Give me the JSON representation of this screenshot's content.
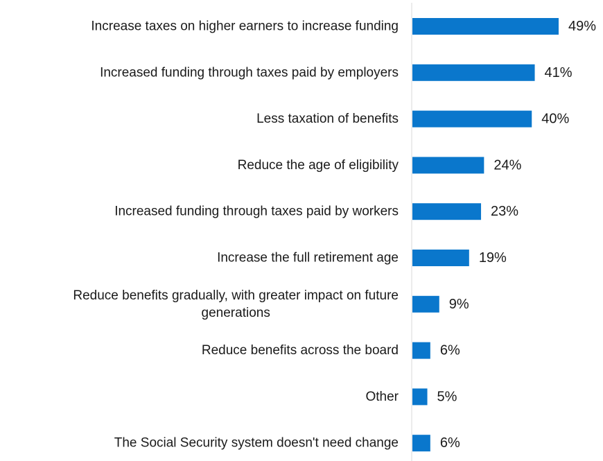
{
  "chart_data": {
    "type": "bar",
    "orientation": "horizontal",
    "categories": [
      "Increase taxes on higher earners to increase funding",
      "Increased funding through taxes paid by employers",
      "Less taxation of benefits",
      "Reduce the age of eligibility",
      "Increased funding through taxes paid by workers",
      "Increase the full retirement age",
      "Reduce benefits gradually, with greater impact on future generations",
      "Reduce benefits across the board",
      "Other",
      "The Social Security system doesn't need change"
    ],
    "category_lines": [
      [
        "Increase taxes on higher earners to increase funding"
      ],
      [
        "Increased funding through taxes paid by employers"
      ],
      [
        "Less taxation of benefits"
      ],
      [
        "Reduce the age of eligibility"
      ],
      [
        "Increased funding through taxes paid by workers"
      ],
      [
        "Increase the full retirement age"
      ],
      [
        "Reduce benefits gradually, with greater impact on future",
        "generations"
      ],
      [
        "Reduce benefits across the board"
      ],
      [
        "Other"
      ],
      [
        "The Social Security system doesn't need change"
      ]
    ],
    "values": [
      49,
      41,
      40,
      24,
      23,
      19,
      9,
      6,
      5,
      6
    ],
    "value_labels": [
      "49%",
      "41%",
      "40%",
      "24%",
      "23%",
      "19%",
      "9%",
      "6%",
      "5%",
      "6%"
    ],
    "unit": "%",
    "xlim": [
      0,
      60
    ],
    "bar_color": "#0a77cc",
    "axis_color": "#d9d9d9",
    "grid": false,
    "legend": "none",
    "title": "",
    "xlabel": "",
    "ylabel": ""
  }
}
